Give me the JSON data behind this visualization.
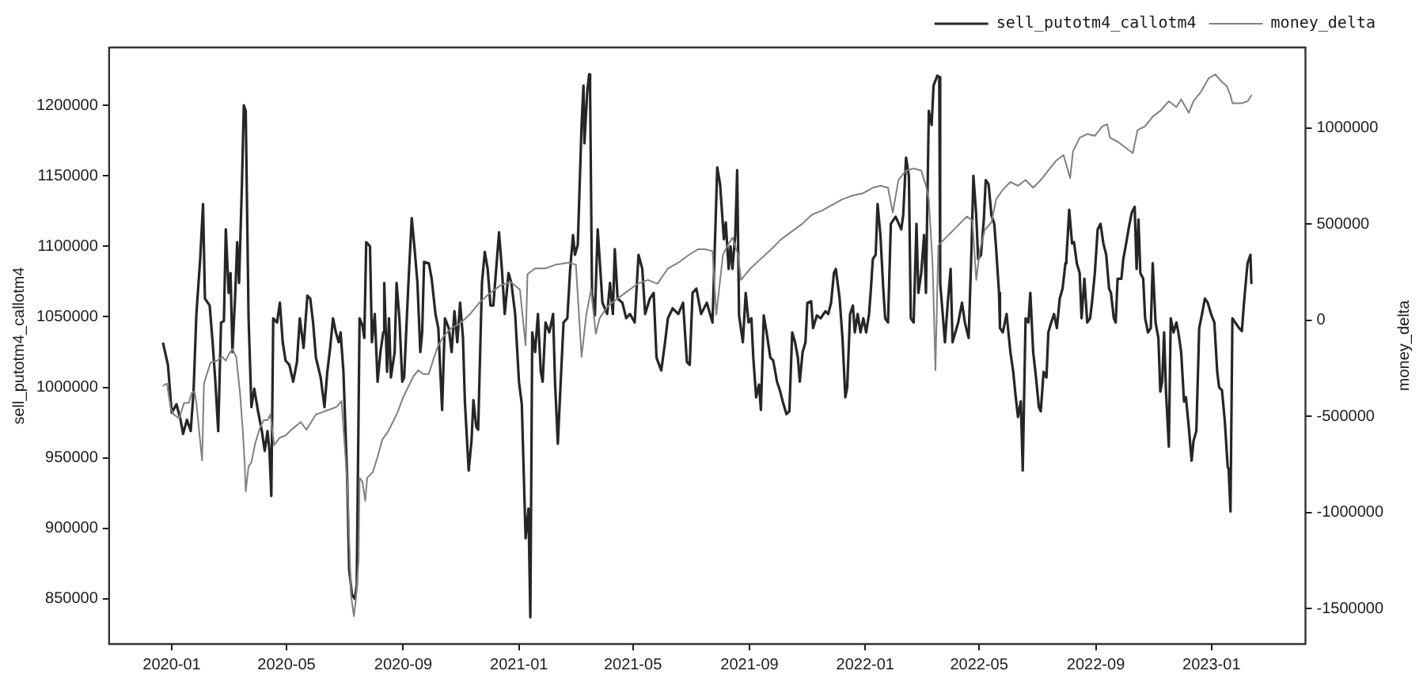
{
  "chart_data": {
    "type": "line",
    "ylabel": "sell_putotm4_callotm4",
    "y2label": "money_delta",
    "xlim": [
      "2019-10-27",
      "2023-04-10"
    ],
    "xticks": [
      "2020-01",
      "2020-05",
      "2020-09",
      "2021-01",
      "2021-05",
      "2021-09",
      "2022-01",
      "2022-05",
      "2022-09",
      "2023-01"
    ],
    "ylim": [
      818000,
      1241000
    ],
    "yticks": [
      850000,
      900000,
      950000,
      1000000,
      1050000,
      1100000,
      1150000,
      1200000
    ],
    "y2lim": [
      -1685000,
      1420000
    ],
    "y2ticks": [
      -1500000,
      -1000000,
      -500000,
      0,
      500000,
      1000000
    ],
    "legend": "top right",
    "series": [
      {
        "name": "sell_putotm4_callotm4",
        "color": "#262626",
        "x": [
          "2019-12-23",
          "2019-12-28",
          "2020-01-01",
          "2020-01-06",
          "2020-01-10",
          "2020-01-13",
          "2020-01-17",
          "2020-01-21",
          "2020-01-24",
          "2020-01-27",
          "2020-01-31",
          "2020-02-03",
          "2020-02-05",
          "2020-02-10",
          "2020-02-13",
          "2020-02-16",
          "2020-02-19",
          "2020-02-22",
          "2020-02-25",
          "2020-02-27",
          "2020-03-01",
          "2020-03-03",
          "2020-03-05",
          "2020-03-08",
          "2020-03-10",
          "2020-03-12",
          "2020-03-15",
          "2020-03-17",
          "2020-03-19",
          "2020-03-22",
          "2020-03-25",
          "2020-03-28",
          "2020-04-01",
          "2020-04-05",
          "2020-04-08",
          "2020-04-11",
          "2020-04-13",
          "2020-04-15",
          "2020-04-17",
          "2020-04-21",
          "2020-04-24",
          "2020-04-27",
          "2020-04-30",
          "2020-05-04",
          "2020-05-08",
          "2020-05-12",
          "2020-05-15",
          "2020-05-19",
          "2020-05-23",
          "2020-05-26",
          "2020-05-29",
          "2020-06-01",
          "2020-06-06",
          "2020-06-10",
          "2020-06-13",
          "2020-06-16",
          "2020-06-19",
          "2020-06-22",
          "2020-06-25",
          "2020-06-27",
          "2020-06-30",
          "2020-07-04",
          "2020-07-06",
          "2020-07-09",
          "2020-07-12",
          "2020-07-14",
          "2020-07-17",
          "2020-07-20",
          "2020-07-22",
          "2020-07-24",
          "2020-07-28",
          "2020-07-30",
          "2020-08-02",
          "2020-08-05",
          "2020-08-08",
          "2020-08-11",
          "2020-08-12",
          "2020-08-15",
          "2020-08-17",
          "2020-08-19",
          "2020-08-23",
          "2020-08-25",
          "2020-08-28",
          "2020-08-31",
          "2020-09-02",
          "2020-09-05",
          "2020-09-07",
          "2020-09-10",
          "2020-09-13",
          "2020-09-16",
          "2020-09-19",
          "2020-09-21",
          "2020-09-23",
          "2020-09-28",
          "2020-10-01",
          "2020-10-05",
          "2020-10-08",
          "2020-10-12",
          "2020-10-15",
          "2020-10-19",
          "2020-10-22",
          "2020-10-25",
          "2020-10-28",
          "2020-10-31",
          "2020-11-03",
          "2020-11-05",
          "2020-11-09",
          "2020-11-12",
          "2020-11-14",
          "2020-11-17",
          "2020-11-19",
          "2020-11-23",
          "2020-11-26",
          "2020-11-29",
          "2020-12-02",
          "2020-12-05",
          "2020-12-08",
          "2020-12-11",
          "2020-12-14",
          "2020-12-17",
          "2020-12-21",
          "2020-12-24",
          "2020-12-28",
          "2021-01-01",
          "2021-01-04",
          "2021-01-08",
          "2021-01-11",
          "2021-01-13",
          "2021-01-15",
          "2021-01-18",
          "2021-01-21",
          "2021-01-24",
          "2021-01-26",
          "2021-01-29",
          "2021-02-02",
          "2021-02-06",
          "2021-02-08",
          "2021-02-11",
          "2021-02-14",
          "2021-02-17",
          "2021-02-21",
          "2021-02-24",
          "2021-02-27",
          "2021-03-01",
          "2021-03-04",
          "2021-03-08",
          "2021-03-10",
          "2021-03-11",
          "2021-03-14",
          "2021-03-16",
          "2021-03-17",
          "2021-03-19",
          "2021-03-22",
          "2021-03-25",
          "2021-03-28",
          "2021-03-30",
          "2021-04-04",
          "2021-04-07",
          "2021-04-10",
          "2021-04-12",
          "2021-04-15",
          "2021-04-20",
          "2021-04-24",
          "2021-04-28",
          "2021-05-03",
          "2021-05-07",
          "2021-05-11",
          "2021-05-14",
          "2021-05-19",
          "2021-05-23",
          "2021-05-26",
          "2021-05-31",
          "2021-06-04",
          "2021-06-07",
          "2021-06-12",
          "2021-06-18",
          "2021-06-23",
          "2021-06-27",
          "2021-06-30",
          "2021-07-03",
          "2021-07-07",
          "2021-07-12",
          "2021-07-18",
          "2021-07-24",
          "2021-07-29",
          "2021-08-01",
          "2021-08-05",
          "2021-08-07",
          "2021-08-10",
          "2021-08-12",
          "2021-08-14",
          "2021-08-17",
          "2021-08-19",
          "2021-08-21",
          "2021-08-25",
          "2021-08-28",
          "2021-08-31",
          "2021-09-03",
          "2021-09-05",
          "2021-09-08",
          "2021-09-11",
          "2021-09-13",
          "2021-09-16",
          "2021-09-19",
          "2021-09-23",
          "2021-09-26",
          "2021-09-30",
          "2021-10-03",
          "2021-10-06",
          "2021-10-10",
          "2021-10-13",
          "2021-10-16",
          "2021-10-19",
          "2021-10-22",
          "2021-10-24",
          "2021-10-27",
          "2021-10-30",
          "2021-11-01",
          "2021-11-05",
          "2021-11-07",
          "2021-11-11",
          "2021-11-15",
          "2021-11-20",
          "2021-11-23",
          "2021-11-26",
          "2021-11-29",
          "2021-12-01",
          "2021-12-05",
          "2021-12-08",
          "2021-12-11",
          "2021-12-13",
          "2021-12-16",
          "2021-12-19",
          "2021-12-21",
          "2021-12-24",
          "2021-12-27",
          "2021-12-30",
          "2022-01-02",
          "2022-01-05",
          "2022-01-07",
          "2022-01-09",
          "2022-01-12",
          "2022-01-14",
          "2022-01-17",
          "2022-01-20",
          "2022-01-22",
          "2022-01-25",
          "2022-01-28",
          "2022-02-02",
          "2022-02-08",
          "2022-02-10",
          "2022-02-13",
          "2022-02-16",
          "2022-02-18",
          "2022-02-21",
          "2022-02-24",
          "2022-02-26",
          "2022-03-01",
          "2022-03-04",
          "2022-03-06",
          "2022-03-09",
          "2022-03-12",
          "2022-03-14",
          "2022-03-18",
          "2022-03-20",
          "2022-03-21",
          "2022-03-24",
          "2022-03-26",
          "2022-03-29",
          "2022-04-01",
          "2022-04-03",
          "2022-04-06",
          "2022-04-09",
          "2022-04-13",
          "2022-04-16",
          "2022-04-20",
          "2022-04-23",
          "2022-04-25",
          "2022-04-28",
          "2022-04-30",
          "2022-05-03",
          "2022-05-06",
          "2022-05-08",
          "2022-05-11",
          "2022-05-14",
          "2022-05-17",
          "2022-05-19",
          "2022-05-22",
          "2022-05-23",
          "2022-05-26",
          "2022-05-30",
          "2022-06-03",
          "2022-06-06",
          "2022-06-08",
          "2022-06-11",
          "2022-06-14",
          "2022-06-16",
          "2022-06-19",
          "2022-06-22",
          "2022-06-24",
          "2022-06-27",
          "2022-06-30",
          "2022-07-03",
          "2022-07-05",
          "2022-07-08",
          "2022-07-11",
          "2022-07-13",
          "2022-07-16",
          "2022-07-19",
          "2022-07-22",
          "2022-07-25",
          "2022-07-28",
          "2022-07-31",
          "2022-08-01",
          "2022-08-04",
          "2022-08-07",
          "2022-08-09",
          "2022-08-12",
          "2022-08-15",
          "2022-08-17",
          "2022-08-20",
          "2022-08-23",
          "2022-08-26",
          "2022-08-28",
          "2022-08-31",
          "2022-09-03",
          "2022-09-06",
          "2022-09-09",
          "2022-09-12",
          "2022-09-15",
          "2022-09-17",
          "2022-09-20",
          "2022-09-22",
          "2022-09-24",
          "2022-09-28",
          "2022-09-30",
          "2022-10-03",
          "2022-10-06",
          "2022-10-09",
          "2022-10-12",
          "2022-10-14",
          "2022-10-16",
          "2022-10-18",
          "2022-10-21",
          "2022-10-23",
          "2022-10-26",
          "2022-10-29",
          "2022-10-31",
          "2022-11-03",
          "2022-11-06",
          "2022-11-08",
          "2022-11-10",
          "2022-11-12",
          "2022-11-14",
          "2022-11-17",
          "2022-11-19",
          "2022-11-22",
          "2022-11-25",
          "2022-11-27",
          "2022-11-30",
          "2022-12-03",
          "2022-12-05",
          "2022-12-08",
          "2022-12-11",
          "2022-12-13",
          "2022-12-16",
          "2022-12-19",
          "2022-12-22",
          "2022-12-25",
          "2022-12-28",
          "2023-01-01",
          "2023-01-04",
          "2023-01-07",
          "2023-01-09",
          "2023-01-12",
          "2023-01-15",
          "2023-01-18",
          "2023-01-19",
          "2023-01-21",
          "2023-01-23",
          "2023-01-26",
          "2023-01-30",
          "2023-02-02",
          "2023-02-04",
          "2023-02-07",
          "2023-02-08",
          "2023-02-11",
          "2023-02-12"
        ],
        "values": [
          1031000,
          1016000,
          982000,
          988000,
          978000,
          967000,
          977000,
          969000,
          997000,
          1052000,
          1091000,
          1130000,
          1063000,
          1058000,
          1033000,
          1004000,
          969000,
          1046000,
          1047000,
          1112000,
          1067000,
          1081000,
          1025000,
          1067000,
          1103000,
          1074000,
          1144000,
          1200000,
          1196000,
          1049000,
          986000,
          999000,
          983000,
          969000,
          955000,
          969000,
          955000,
          923000,
          1049000,
          1046000,
          1060000,
          1032000,
          1019000,
          1016000,
          1004000,
          1018000,
          1049000,
          1028000,
          1065000,
          1063000,
          1046000,
          1021000,
          1007000,
          986000,
          1011000,
          1028000,
          1049000,
          1039000,
          1032000,
          1039000,
          1011000,
          934000,
          871000,
          853000,
          850000,
          860000,
          1049000,
          1044000,
          1035000,
          1103000,
          1100000,
          1032000,
          1052000,
          1004000,
          1025000,
          1039000,
          1074000,
          1011000,
          1049000,
          1007000,
          1025000,
          1074000,
          1049000,
          1004000,
          1007000,
          1052000,
          1081000,
          1120000,
          1098000,
          1074000,
          1025000,
          1039000,
          1089000,
          1088000,
          1077000,
          1052000,
          1042000,
          984000,
          1049000,
          1042000,
          1025000,
          1054000,
          1032000,
          1060000,
          1035000,
          990000,
          941000,
          962000,
          991000,
          972000,
          970000,
          1074000,
          1096000,
          1084000,
          1058000,
          1058000,
          1084000,
          1110000,
          1084000,
          1052000,
          1081000,
          1074000,
          1052000,
          1004000,
          988000,
          893000,
          914000,
          837000,
          1039000,
          1025000,
          1052000,
          1011000,
          1004000,
          1046000,
          1039000,
          1052000,
          1004000,
          960000,
          1004000,
          1046000,
          1049000,
          1084000,
          1108000,
          1094000,
          1101000,
          1186000,
          1214000,
          1173000,
          1210000,
          1222000,
          1210000,
          1067000,
          1051000,
          1112000,
          1081000,
          1060000,
          1052000,
          1074000,
          1052000,
          1098000,
          1063000,
          1060000,
          1049000,
          1052000,
          1046000,
          1094000,
          1084000,
          1052000,
          1063000,
          1067000,
          1021000,
          1012000,
          1032000,
          1049000,
          1056000,
          1052000,
          1060000,
          1018000,
          1016000,
          1067000,
          1070000,
          1052000,
          1060000,
          1046000,
          1156000,
          1144000,
          1105000,
          1117000,
          1084000,
          1100000,
          1084000,
          1108000,
          1154000,
          1051000,
          1032000,
          1067000,
          1046000,
          1049000,
          1021000,
          993000,
          1002000,
          984000,
          1051000,
          1039000,
          1021000,
          1019000,
          1004000,
          998000,
          990000,
          981000,
          983000,
          1039000,
          1032000,
          1021000,
          1004000,
          1025000,
          1032000,
          1060000,
          1061000,
          1042000,
          1051000,
          1049000,
          1054000,
          1052000,
          1060000,
          1081000,
          1084000,
          1063000,
          1035000,
          993000,
          1000000,
          1052000,
          1058000,
          1039000,
          1052000,
          1039000,
          1049000,
          1039000,
          1052000,
          1070000,
          1091000,
          1094000,
          1130000,
          1108000,
          1070000,
          1049000,
          1046000,
          1116000,
          1121000,
          1112000,
          1122000,
          1163000,
          1150000,
          1049000,
          1046000,
          1116000,
          1067000,
          1081000,
          1108000,
          1067000,
          1196000,
          1186000,
          1214000,
          1221000,
          1220000,
          1074000,
          1049000,
          1032000,
          1060000,
          1084000,
          1032000,
          1039000,
          1046000,
          1060000,
          1046000,
          1035000,
          1098000,
          1150000,
          1122000,
          1091000,
          1094000,
          1119000,
          1147000,
          1144000,
          1122000,
          1116000,
          1098000,
          1067000,
          1042000,
          1039000,
          1052000,
          1025000,
          1011000,
          997000,
          979000,
          990000,
          941000,
          1049000,
          1046000,
          1067000,
          1025000,
          1007000,
          986000,
          983000,
          1011000,
          1007000,
          1039000,
          1046000,
          1052000,
          1042000,
          1063000,
          1070000,
          1088000,
          1091000,
          1126000,
          1102000,
          1103000,
          1088000,
          1081000,
          1049000,
          1077000,
          1046000,
          1049000,
          1060000,
          1081000,
          1112000,
          1116000,
          1102000,
          1094000,
          1070000,
          1067000,
          1049000,
          1046000,
          1077000,
          1077000,
          1091000,
          1102000,
          1114000,
          1124000,
          1128000,
          1084000,
          1119000,
          1081000,
          1077000,
          1049000,
          1039000,
          1042000,
          1088000,
          1046000,
          1035000,
          997000,
          1004000,
          1039000,
          997000,
          958000,
          1049000,
          1039000,
          1046000,
          1039000,
          1025000,
          990000,
          993000,
          972000,
          948000,
          962000,
          969000,
          1042000,
          1052000,
          1063000,
          1060000,
          1051000,
          1046000,
          1011000,
          1000000,
          998000,
          976000,
          944000,
          942000,
          912000,
          1049000,
          1046000,
          1042000,
          1040000,
          1058000,
          1081000,
          1088000,
          1094000,
          1074000
        ]
      },
      {
        "name": "money_delta",
        "color": "#808080",
        "axis": "y2",
        "x": [
          "2019-12-23",
          "2019-12-27",
          "2019-12-31",
          "2020-01-03",
          "2020-01-09",
          "2020-01-14",
          "2020-01-19",
          "2020-01-22",
          "2020-01-25",
          "2020-01-27",
          "2020-01-30",
          "2020-02-02",
          "2020-02-04",
          "2020-02-07",
          "2020-02-11",
          "2020-02-18",
          "2020-02-23",
          "2020-02-27",
          "2020-03-02",
          "2020-03-05",
          "2020-03-09",
          "2020-03-13",
          "2020-03-16",
          "2020-03-18",
          "2020-03-19",
          "2020-03-22",
          "2020-03-25",
          "2020-03-29",
          "2020-04-03",
          "2020-04-07",
          "2020-04-11",
          "2020-04-14",
          "2020-04-18",
          "2020-04-24",
          "2020-04-30",
          "2020-05-06",
          "2020-05-11",
          "2020-05-16",
          "2020-05-22",
          "2020-05-27",
          "2020-06-01",
          "2020-06-07",
          "2020-06-12",
          "2020-06-18",
          "2020-06-23",
          "2020-06-28",
          "2020-07-04",
          "2020-07-08",
          "2020-07-11",
          "2020-07-13",
          "2020-07-16",
          "2020-07-17",
          "2020-07-20",
          "2020-07-23",
          "2020-07-25",
          "2020-07-31",
          "2020-08-05",
          "2020-08-10",
          "2020-08-16",
          "2020-08-21",
          "2020-08-26",
          "2020-09-01",
          "2020-09-06",
          "2020-09-12",
          "2020-09-17",
          "2020-09-22",
          "2020-09-28",
          "2020-10-03",
          "2020-10-08",
          "2020-10-14",
          "2020-10-22",
          "2020-10-30",
          "2020-11-10",
          "2020-11-20",
          "2020-12-01",
          "2020-12-12",
          "2020-12-23",
          "2021-01-02",
          "2021-01-08",
          "2021-01-10",
          "2021-01-18",
          "2021-01-29",
          "2021-02-09",
          "2021-02-22",
          "2021-03-02",
          "2021-03-08",
          "2021-03-13",
          "2021-03-18",
          "2021-03-23",
          "2021-03-27",
          "2021-04-04",
          "2021-04-14",
          "2021-04-25",
          "2021-05-06",
          "2021-05-17",
          "2021-05-27",
          "2021-06-07",
          "2021-06-18",
          "2021-06-29",
          "2021-07-09",
          "2021-07-16",
          "2021-07-24",
          "2021-07-28",
          "2021-08-04",
          "2021-08-09",
          "2021-08-14",
          "2021-08-20",
          "2021-08-23",
          "2021-09-02",
          "2021-09-13",
          "2021-09-24",
          "2021-10-04",
          "2021-10-15",
          "2021-10-26",
          "2021-11-06",
          "2021-11-16",
          "2021-11-27",
          "2021-12-08",
          "2021-12-19",
          "2021-12-29",
          "2022-01-09",
          "2022-01-17",
          "2022-01-25",
          "2022-01-30",
          "2022-02-05",
          "2022-02-13",
          "2022-02-21",
          "2022-03-01",
          "2022-03-06",
          "2022-03-09",
          "2022-03-13",
          "2022-03-16",
          "2022-03-19",
          "2022-03-25",
          "2022-04-02",
          "2022-04-10",
          "2022-04-18",
          "2022-04-24",
          "2022-04-28",
          "2022-05-02",
          "2022-05-07",
          "2022-05-14",
          "2022-05-19",
          "2022-05-26",
          "2022-06-03",
          "2022-06-11",
          "2022-06-19",
          "2022-06-27",
          "2022-07-05",
          "2022-07-13",
          "2022-07-21",
          "2022-07-29",
          "2022-08-05",
          "2022-08-08",
          "2022-08-15",
          "2022-08-23",
          "2022-08-31",
          "2022-09-08",
          "2022-09-13",
          "2022-09-16",
          "2022-09-24",
          "2022-10-02",
          "2022-10-10",
          "2022-10-15",
          "2022-10-23",
          "2022-10-31",
          "2022-11-08",
          "2022-11-17",
          "2022-11-25",
          "2022-11-30",
          "2022-12-08",
          "2022-12-13",
          "2022-12-21",
          "2022-12-29",
          "2023-01-05",
          "2023-01-12",
          "2023-01-17",
          "2023-01-21",
          "2023-01-23",
          "2023-02-02",
          "2023-02-08",
          "2023-02-12"
        ],
        "values": [
          -340000,
          -330000,
          -460000,
          -490000,
          -510000,
          -430000,
          -430000,
          -380000,
          -370000,
          -430000,
          -580000,
          -730000,
          -330000,
          -280000,
          -220000,
          -210000,
          -190000,
          -210000,
          -170000,
          -150000,
          -190000,
          -380000,
          -580000,
          -760000,
          -890000,
          -760000,
          -740000,
          -640000,
          -560000,
          -520000,
          -520000,
          -490000,
          -650000,
          -610000,
          -600000,
          -570000,
          -550000,
          -530000,
          -570000,
          -530000,
          -490000,
          -480000,
          -470000,
          -460000,
          -450000,
          -420000,
          -840000,
          -1430000,
          -1540000,
          -1460000,
          -1250000,
          -820000,
          -840000,
          -940000,
          -820000,
          -790000,
          -710000,
          -620000,
          -580000,
          -530000,
          -480000,
          -400000,
          -350000,
          -290000,
          -260000,
          -280000,
          -280000,
          -200000,
          -130000,
          -80000,
          -40000,
          -20000,
          30000,
          90000,
          140000,
          180000,
          200000,
          160000,
          -130000,
          240000,
          270000,
          270000,
          290000,
          300000,
          290000,
          -190000,
          30000,
          160000,
          -70000,
          10000,
          70000,
          110000,
          150000,
          190000,
          210000,
          190000,
          270000,
          300000,
          340000,
          370000,
          370000,
          360000,
          30000,
          340000,
          390000,
          430000,
          340000,
          210000,
          270000,
          320000,
          370000,
          420000,
          460000,
          500000,
          550000,
          570000,
          600000,
          630000,
          650000,
          660000,
          690000,
          700000,
          690000,
          560000,
          730000,
          780000,
          790000,
          780000,
          700000,
          630000,
          290000,
          -260000,
          390000,
          420000,
          460000,
          500000,
          540000,
          520000,
          210000,
          370000,
          470000,
          510000,
          630000,
          680000,
          720000,
          700000,
          730000,
          690000,
          730000,
          780000,
          830000,
          860000,
          740000,
          880000,
          950000,
          970000,
          960000,
          1010000,
          1020000,
          950000,
          930000,
          900000,
          870000,
          990000,
          1010000,
          1060000,
          1090000,
          1140000,
          1110000,
          1150000,
          1080000,
          1140000,
          1190000,
          1260000,
          1280000,
          1240000,
          1220000,
          1170000,
          1130000,
          1130000,
          1140000,
          1170000
        ]
      }
    ]
  }
}
